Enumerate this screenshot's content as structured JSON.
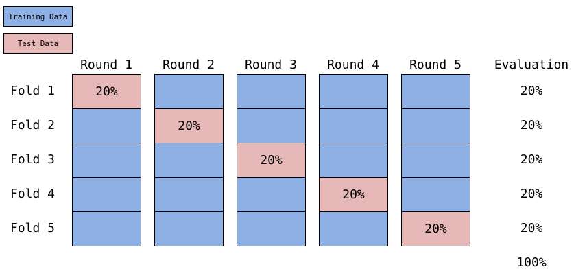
{
  "colors": {
    "training": "#8eb0e4",
    "test": "#e6b9b8"
  },
  "legend": {
    "training_label": "Training Data",
    "test_label": "Test Data"
  },
  "rounds": [
    {
      "label": "Round 1",
      "test_fold": 1,
      "test_text": "20%"
    },
    {
      "label": "Round 2",
      "test_fold": 2,
      "test_text": "20%"
    },
    {
      "label": "Round 3",
      "test_fold": 3,
      "test_text": "20%"
    },
    {
      "label": "Round 4",
      "test_fold": 4,
      "test_text": "20%"
    },
    {
      "label": "Round 5",
      "test_fold": 5,
      "test_text": "20%"
    }
  ],
  "folds": [
    "Fold 1",
    "Fold 2",
    "Fold 3",
    "Fold 4",
    "Fold 5"
  ],
  "evaluation": {
    "header": "Evaluation",
    "values": [
      "20%",
      "20%",
      "20%",
      "20%",
      "20%"
    ],
    "total": "100%"
  }
}
